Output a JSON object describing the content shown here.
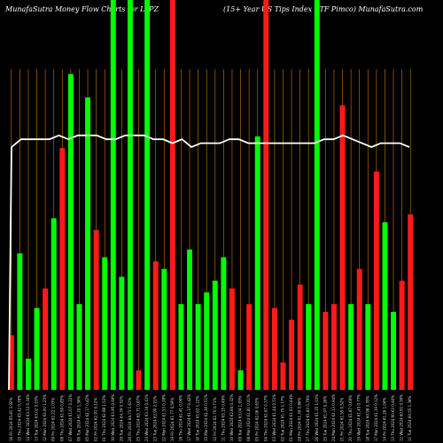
{
  "header": {
    "left": "MunafaSutra  Money Flow  Charts for LTPZ",
    "right": "(15+  Year US Tips Index ETF Pimco) MunafaSutra.com"
  },
  "chart_data": {
    "type": "bar",
    "title": "MunafaSutra  Money Flow  Charts for LTPZ (15+  Year US Tips Index ETF Pimco) MunafaSutra.com",
    "ylim": [
      0,
      100
    ],
    "grid": "vertical",
    "colors": {
      "up": "#00ff00",
      "down": "#ff1a1a",
      "grid": "#b36b00",
      "line": "#ffffff"
    },
    "categories": [
      "16 Fri 2024 65.81 3.92%",
      "15 Thu 2024 63.42 0.78%",
      "14 Wed 2024 63.12 0.34%",
      "13 Tue 2024 63.02 0.03%",
      "12 Mon 2024 63.00 1.25%",
      "09 Fri 2024 62.22 1.03%",
      "08 Thu 2024 61.59 0.85%",
      "07 Wed 2024 61.07 0.22%",
      "06 Tue 2024 61.20 1.56%",
      "05 Mon 2024 62.17 0.42%",
      "02 Fri 2024 62.91 0.12%",
      "01 Thu 2024 62.98 1.53%",
      "30 Wed 2024 63.95 0.69%",
      "29 Tue 2024 64.39 0.52%",
      "26 Fri 2024 64.73 1.61%",
      "25 Thu 2024 63.71 0.87%",
      "24 Wed 2024 63.16 0.41%",
      "23 Tue 2024 62.90 2.21%",
      "22 Mon 2024 61.53 0.38%",
      "19 Fri 2024 61.77 0.59%",
      "18 Thu 2024 61.41 0.06%",
      "17 Wed 2024 61.37 0.42%",
      "16 Tue 2024 61.63 1.22%",
      "15 Mon 2024 62.38 0.51%",
      "12 Fri 2024 62.70 0.71%",
      "11 Thu 2024 63.15 0.49%",
      "10 Wed 2024 62.84 0.32%",
      "09 Tue 2024 63.04 1.93%",
      "08 Mon 2024 61.81 0.41%",
      "05 Fri 2024 62.06 0.63%",
      "04 Thu 2024 61.67 0.37%",
      "03 Wed 2024 61.44 0.51%",
      "02 Tue 2024 61.75 1.17%",
      "01 Mon 2024 61.03 0.44%",
      "28 Fri 2024 61.30 0.86%",
      "27 Thu 2024 61.83 0.79%",
      "26 Wed 2024 61.35 1.01%",
      "25 Tue 2024 61.97 0.26%",
      "24 Mon 2024 62.13 0.94%",
      "21 Fri 2024 61.55 0.52%",
      "20 Thu 2024 61.87 0.69%",
      "19 Wed 2024 61.45 0.77%",
      "18 Tue 2024 60.98 0.35%",
      "17 Mon 2024 61.19 0.12%",
      "14 Fri 2024 61.26 1.04%",
      "13 Thu 2024 60.63 0.46%",
      "12 Wed 2024 60.91 0.59%",
      "11 Tue 2024 60.55 1.38%"
    ],
    "colors_seq": [
      "r",
      "g",
      "g",
      "g",
      "r",
      "g",
      "r",
      "g",
      "g",
      "g",
      "r",
      "g",
      "g",
      "g",
      "g",
      "r",
      "g",
      "r",
      "g",
      "r",
      "g",
      "g",
      "g",
      "g",
      "g",
      "g",
      "r",
      "g",
      "r",
      "g",
      "r",
      "r",
      "r",
      "r",
      "r",
      "g",
      "g",
      "r",
      "r",
      "r",
      "g",
      "r",
      "g",
      "r",
      "g",
      "g",
      "r",
      "r"
    ],
    "values": [
      14,
      35,
      8,
      21,
      26,
      44,
      62,
      81,
      22,
      75,
      41,
      34,
      100,
      29,
      100,
      5,
      100,
      33,
      31,
      100,
      22,
      36,
      22,
      25,
      28,
      34,
      26,
      5,
      22,
      65,
      100,
      21,
      7,
      18,
      27,
      22,
      100,
      20,
      22,
      73,
      22,
      31,
      22,
      56,
      43,
      20,
      28,
      45
    ],
    "line": [
      70,
      72,
      72,
      72,
      72,
      73,
      72,
      73,
      73,
      73,
      72,
      72,
      73,
      73,
      73,
      72,
      72,
      71,
      72,
      70,
      71,
      71,
      71,
      72,
      72,
      71,
      71,
      71,
      71,
      71,
      71,
      71,
      71,
      72,
      72,
      73,
      72,
      71,
      70,
      71,
      71,
      71,
      70
    ]
  }
}
